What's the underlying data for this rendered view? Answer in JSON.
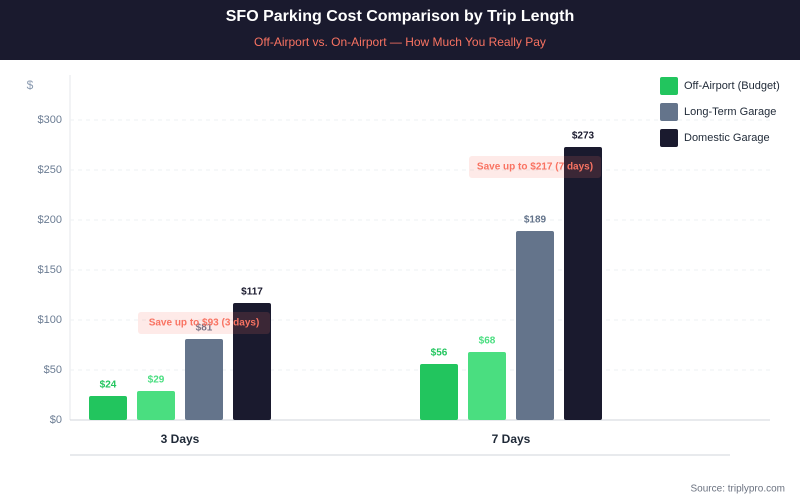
{
  "chart_data": {
    "type": "bar",
    "title": "SFO Parking Cost Comparison by Trip Length",
    "subtitle": "Off-Airport vs. On-Airport — How Much You Really Pay",
    "y_label": "$",
    "categories": [
      "3 Days",
      "7 Days"
    ],
    "series": [
      {
        "name": "Off-Airport (Budget)",
        "color": "#22c55e",
        "values": [
          24,
          56
        ],
        "value_labels": [
          "$24",
          "$56"
        ]
      },
      {
        "color": "#4ade80",
        "values": [
          29,
          68
        ],
        "value_labels": [
          "$29",
          "$68"
        ]
      },
      {
        "name": "Long-Term Garage",
        "color": "#64748b",
        "values": [
          81,
          189
        ],
        "value_labels": [
          "$81",
          "$189"
        ]
      },
      {
        "name": "Domestic Garage",
        "color": "#1a1a2e",
        "values": [
          117,
          273
        ],
        "value_labels": [
          "$117",
          "$273"
        ]
      }
    ],
    "ylim": [
      0,
      300
    ],
    "yticks": [
      {
        "value": 0,
        "label": "$0"
      },
      {
        "value": 50,
        "label": "$50"
      },
      {
        "value": 100,
        "label": "$100"
      },
      {
        "value": 150,
        "label": "$150"
      },
      {
        "value": 200,
        "label": "$200"
      },
      {
        "value": 250,
        "label": "$250"
      },
      {
        "value": 300,
        "label": "$300"
      }
    ],
    "grid": true,
    "legend": "top-right",
    "annotations": [
      "Save up to $93 (3 days)",
      "Save up to $217 (7 days)"
    ],
    "source": "Source: triplypro.com"
  }
}
